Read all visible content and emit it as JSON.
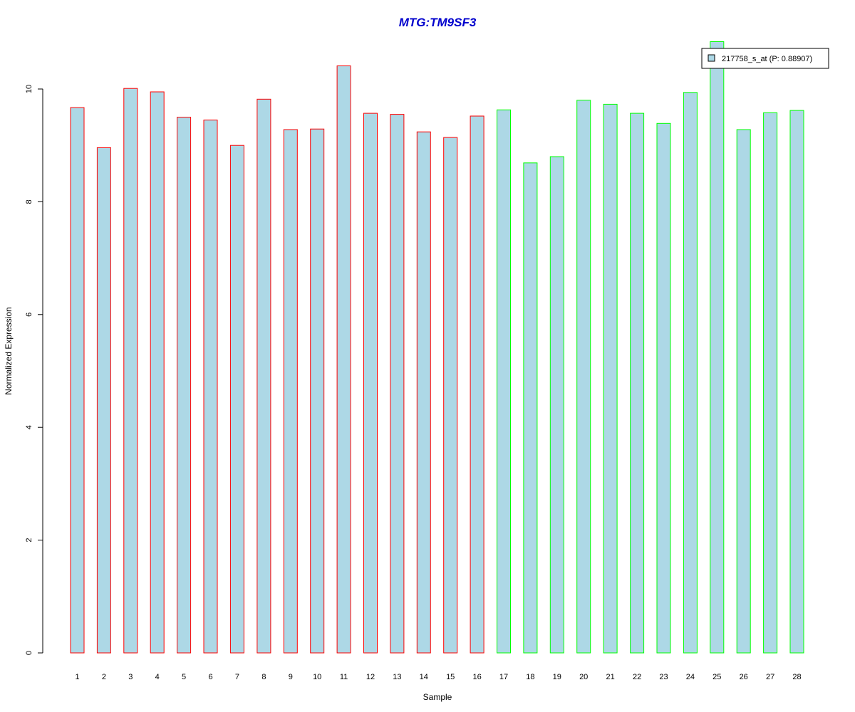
{
  "chart_data": {
    "type": "bar",
    "title": "MTG:TM9SF3",
    "xlabel": "Sample",
    "ylabel": "Normalized Expression",
    "categories": [
      "1",
      "2",
      "3",
      "4",
      "5",
      "6",
      "7",
      "8",
      "9",
      "10",
      "11",
      "12",
      "13",
      "14",
      "15",
      "16",
      "17",
      "18",
      "19",
      "20",
      "21",
      "22",
      "23",
      "24",
      "25",
      "26",
      "27",
      "28"
    ],
    "series": [
      {
        "name": "217758_s_at (P: 0.88907)",
        "values": [
          9.67,
          8.96,
          10.01,
          9.95,
          9.5,
          9.45,
          9.0,
          9.82,
          9.28,
          9.29,
          10.41,
          9.57,
          9.55,
          9.24,
          9.14,
          9.52,
          9.63,
          8.69,
          8.8,
          9.8,
          9.73,
          9.57,
          9.39,
          9.94,
          10.84,
          9.28,
          9.58,
          9.62
        ]
      }
    ],
    "group_border_colors": [
      "#ff0000",
      "#ff0000",
      "#ff0000",
      "#ff0000",
      "#ff0000",
      "#ff0000",
      "#ff0000",
      "#ff0000",
      "#ff0000",
      "#ff0000",
      "#ff0000",
      "#ff0000",
      "#ff0000",
      "#ff0000",
      "#ff0000",
      "#ff0000",
      "#00ff00",
      "#00ff00",
      "#00ff00",
      "#00ff00",
      "#00ff00",
      "#00ff00",
      "#00ff00",
      "#00ff00",
      "#00ff00",
      "#00ff00",
      "#00ff00",
      "#00ff00"
    ],
    "bar_fill": "#add8e6",
    "title_color": "#0000cd",
    "ylim": [
      0,
      10.9
    ],
    "yticks": [
      0,
      2,
      4,
      6,
      8,
      10
    ],
    "grid": false,
    "legend": {
      "position": "top-right",
      "box_color": "#add8e6"
    }
  }
}
